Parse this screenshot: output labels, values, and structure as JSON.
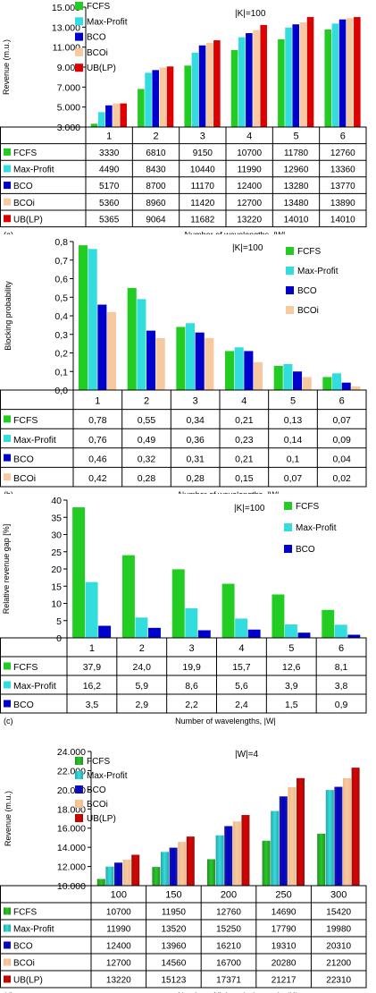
{
  "colors": {
    "FCFS": "#22cc22",
    "Max-Profit": "#33dddd",
    "BCO": "#0000cc",
    "BCOi": "#f6c9a0",
    "UB(LP)": "#dd0000",
    "FCFS_d": "#2e8b2e",
    "Max-Profit_d": "#2aa6a6",
    "BCO_d": "#1a1a9a",
    "BCOi_d": "#f2b98a",
    "UB(LP)_d": "#9a1010"
  },
  "chart_data": [
    {
      "panel": "(a)",
      "type": "bar",
      "annotation": "|K|=100",
      "ylabel": "Revenue (m.u.)",
      "xlabel": "Number of wavelengths, |W|",
      "categories": [
        "1",
        "2",
        "3",
        "4",
        "5",
        "6"
      ],
      "ylim": [
        3000,
        15000
      ],
      "yticks": [
        "3.000",
        "5.000",
        "7.000",
        "9.000",
        "11.000",
        "13.000",
        "15.000"
      ],
      "ytick_values": [
        3000,
        5000,
        7000,
        9000,
        11000,
        13000,
        15000
      ],
      "series": [
        {
          "name": "FCFS",
          "values": [
            3330,
            6810,
            9150,
            10700,
            11780,
            12760
          ],
          "labels": [
            "3330",
            "6810",
            "9150",
            "10700",
            "11780",
            "12760"
          ]
        },
        {
          "name": "Max-Profit",
          "values": [
            4490,
            8430,
            10440,
            11990,
            12960,
            13360
          ],
          "labels": [
            "4490",
            "8430",
            "10440",
            "11990",
            "12960",
            "13360"
          ]
        },
        {
          "name": "BCO",
          "values": [
            5170,
            8700,
            11170,
            12400,
            13280,
            13770
          ],
          "labels": [
            "5170",
            "8700",
            "11170",
            "12400",
            "13280",
            "13770"
          ]
        },
        {
          "name": "BCOi",
          "values": [
            5360,
            8960,
            11420,
            12700,
            13480,
            13890
          ],
          "labels": [
            "5360",
            "8960",
            "11420",
            "12700",
            "13480",
            "13890"
          ]
        },
        {
          "name": "UB(LP)",
          "values": [
            5365,
            9064,
            11682,
            13220,
            14010,
            14010
          ],
          "labels": [
            "5365",
            "9064",
            "11682",
            "13220",
            "14010",
            "14010"
          ]
        }
      ]
    },
    {
      "panel": "(b)",
      "type": "bar",
      "annotation": "|K|=100",
      "ylabel": "Blocking probability",
      "xlabel": "Number of wavelengths, |W|",
      "categories": [
        "1",
        "2",
        "3",
        "4",
        "5",
        "6"
      ],
      "ylim": [
        0,
        0.8
      ],
      "yticks": [
        "0,0",
        "0,1",
        "0,2",
        "0,3",
        "0,4",
        "0,5",
        "0,6",
        "0,7",
        "0,8"
      ],
      "ytick_values": [
        0,
        0.1,
        0.2,
        0.3,
        0.4,
        0.5,
        0.6,
        0.7,
        0.8
      ],
      "series": [
        {
          "name": "FCFS",
          "values": [
            0.78,
            0.55,
            0.34,
            0.21,
            0.13,
            0.07
          ],
          "labels": [
            "0,78",
            "0,55",
            "0,34",
            "0,21",
            "0,13",
            "0,07"
          ]
        },
        {
          "name": "Max-Profit",
          "values": [
            0.76,
            0.49,
            0.36,
            0.23,
            0.14,
            0.09
          ],
          "labels": [
            "0,76",
            "0,49",
            "0,36",
            "0,23",
            "0,14",
            "0,09"
          ]
        },
        {
          "name": "BCO",
          "values": [
            0.46,
            0.32,
            0.31,
            0.21,
            0.1,
            0.04
          ],
          "labels": [
            "0,46",
            "0,32",
            "0,31",
            "0,21",
            "0,1",
            "0,04"
          ]
        },
        {
          "name": "BCOi",
          "values": [
            0.42,
            0.28,
            0.28,
            0.15,
            0.07,
            0.02
          ],
          "labels": [
            "0,42",
            "0,28",
            "0,28",
            "0,15",
            "0,07",
            "0,02"
          ]
        }
      ]
    },
    {
      "panel": "(c)",
      "type": "bar",
      "annotation": "|K|=100",
      "ylabel": "Relative revenue gap [%]",
      "xlabel": "Number of wavelengths, |W|",
      "categories": [
        "1",
        "2",
        "3",
        "4",
        "5",
        "6"
      ],
      "ylim": [
        0,
        40
      ],
      "yticks": [
        "0",
        "5",
        "10",
        "15",
        "20",
        "25",
        "30",
        "35",
        "40"
      ],
      "ytick_values": [
        0,
        5,
        10,
        15,
        20,
        25,
        30,
        35,
        40
      ],
      "series": [
        {
          "name": "FCFS",
          "values": [
            37.9,
            24.0,
            19.9,
            15.7,
            12.6,
            8.1
          ],
          "labels": [
            "37,9",
            "24,0",
            "19,9",
            "15,7",
            "12,6",
            "8,1"
          ]
        },
        {
          "name": "Max-Profit",
          "values": [
            16.2,
            5.9,
            8.6,
            5.6,
            3.9,
            3.8
          ],
          "labels": [
            "16,2",
            "5,9",
            "8,6",
            "5,6",
            "3,9",
            "3,8"
          ]
        },
        {
          "name": "BCO",
          "values": [
            3.5,
            2.9,
            2.2,
            2.4,
            1.5,
            0.9
          ],
          "labels": [
            "3,5",
            "2,9",
            "2,2",
            "2,4",
            "1,5",
            "0,9"
          ]
        }
      ]
    },
    {
      "panel": "(d)",
      "type": "bar",
      "annotation": "|W|=4",
      "ylabel": "Revenue (m.u.)",
      "xlabel": "Number of lightpath demands, |K|",
      "categories": [
        "100",
        "150",
        "200",
        "250",
        "300"
      ],
      "ylim": [
        10000,
        24000
      ],
      "yticks": [
        "10.000",
        "12.000",
        "14.000",
        "16.000",
        "18.000",
        "20.000",
        "22.000",
        "24.000"
      ],
      "ytick_values": [
        10000,
        12000,
        14000,
        16000,
        18000,
        20000,
        22000,
        24000
      ],
      "series": [
        {
          "name": "FCFS",
          "values": [
            10700,
            11950,
            12760,
            14690,
            15420
          ],
          "labels": [
            "10700",
            "11950",
            "12760",
            "14690",
            "15420"
          ]
        },
        {
          "name": "Max-Profit",
          "values": [
            11990,
            13520,
            15250,
            17790,
            19980
          ],
          "labels": [
            "11990",
            "13520",
            "15250",
            "17790",
            "19980"
          ]
        },
        {
          "name": "BCO",
          "values": [
            12400,
            13960,
            16210,
            19310,
            20310
          ],
          "labels": [
            "12400",
            "13960",
            "16210",
            "19310",
            "20310"
          ]
        },
        {
          "name": "BCOi",
          "values": [
            12700,
            14560,
            16700,
            20280,
            21200
          ],
          "labels": [
            "12700",
            "14560",
            "16700",
            "20280",
            "21200"
          ]
        },
        {
          "name": "UB(LP)",
          "values": [
            13220,
            15123,
            17371,
            21217,
            22310
          ],
          "labels": [
            "13220",
            "15123",
            "17371",
            "21217",
            "22310"
          ]
        }
      ]
    }
  ]
}
